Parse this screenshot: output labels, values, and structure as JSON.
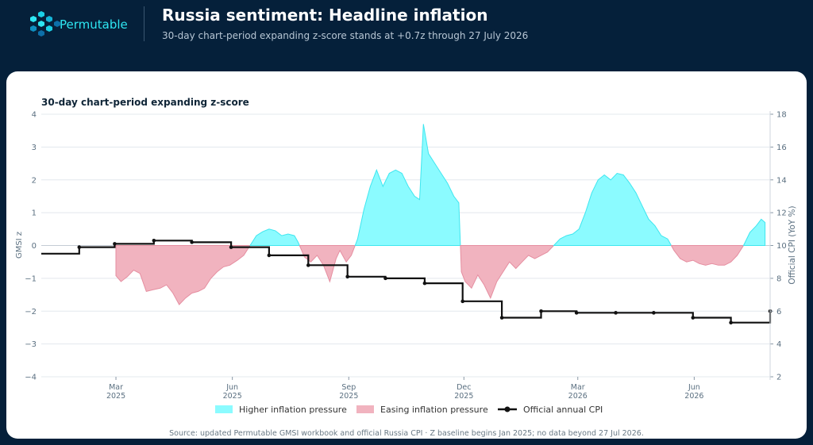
{
  "header": {
    "brand": "Permutable",
    "title": "Russia sentiment: Headline inflation",
    "subtitle": "30-day chart-period expanding z-score stands at +0.7z through 27 July 2026"
  },
  "footer": {
    "source": "Source: updated Permutable GMSI workbook and official Russia CPI · Z baseline begins Jan 2025; no data beyond 27 Jul 2026."
  },
  "colors": {
    "higher": "#8bfbff",
    "higher_line": "#3ee6ef",
    "easing": "#f1b3bf",
    "easing_line": "#e58ea0",
    "cpi": "#111111",
    "header_bg": "#05203a",
    "brand": "#2ee6f2"
  },
  "chart_data": {
    "type": "area",
    "title": "30-day chart-period expanding z-score",
    "ylabel": "GMSI z",
    "y2label": "Official CPI (YoY %)",
    "ylim": [
      -4,
      4
    ],
    "y2lim": [
      2,
      18
    ],
    "yticks": [
      -4,
      -3,
      -2,
      -1,
      0,
      1,
      2,
      3,
      4
    ],
    "yticks_labels": [
      "−4",
      "−3",
      "−2",
      "−1",
      "0",
      "1",
      "2",
      "3",
      "4"
    ],
    "y2ticks": [
      2,
      4,
      6,
      8,
      10,
      12,
      14,
      16,
      18
    ],
    "xlim": [
      "2025-01-01",
      "2026-07-31"
    ],
    "xticks": [
      {
        "date": "2025-03-01",
        "month": "Mar",
        "year": "2025"
      },
      {
        "date": "2025-06-01",
        "month": "Jun",
        "year": "2025"
      },
      {
        "date": "2025-09-01",
        "month": "Sep",
        "year": "2025"
      },
      {
        "date": "2025-12-01",
        "month": "Dec",
        "year": "2025"
      },
      {
        "date": "2026-03-01",
        "month": "Mar",
        "year": "2026"
      },
      {
        "date": "2026-06-01",
        "month": "Jun",
        "year": "2026"
      }
    ],
    "grid": true,
    "legend_position": "bottom",
    "legend": {
      "higher": "Higher inflation pressure",
      "easing": "Easing inflation pressure",
      "cpi": "Official annual CPI"
    },
    "zscore": [
      [
        "2025-03-01",
        -0.92
      ],
      [
        "2025-03-05",
        -1.1
      ],
      [
        "2025-03-10",
        -0.95
      ],
      [
        "2025-03-15",
        -0.75
      ],
      [
        "2025-03-20",
        -0.85
      ],
      [
        "2025-03-25",
        -1.4
      ],
      [
        "2025-03-30",
        -1.35
      ],
      [
        "2025-04-05",
        -1.3
      ],
      [
        "2025-04-10",
        -1.2
      ],
      [
        "2025-04-15",
        -1.45
      ],
      [
        "2025-04-20",
        -1.8
      ],
      [
        "2025-04-25",
        -1.6
      ],
      [
        "2025-04-30",
        -1.45
      ],
      [
        "2025-05-05",
        -1.4
      ],
      [
        "2025-05-10",
        -1.3
      ],
      [
        "2025-05-15",
        -1.0
      ],
      [
        "2025-05-20",
        -0.8
      ],
      [
        "2025-05-25",
        -0.65
      ],
      [
        "2025-05-30",
        -0.6
      ],
      [
        "2025-06-05",
        -0.45
      ],
      [
        "2025-06-10",
        -0.3
      ],
      [
        "2025-06-15",
        0.0
      ],
      [
        "2025-06-20",
        0.3
      ],
      [
        "2025-06-25",
        0.42
      ],
      [
        "2025-06-30",
        0.5
      ],
      [
        "2025-07-05",
        0.45
      ],
      [
        "2025-07-10",
        0.3
      ],
      [
        "2025-07-15",
        0.35
      ],
      [
        "2025-07-20",
        0.3
      ],
      [
        "2025-07-23",
        0.1
      ],
      [
        "2025-07-28",
        -0.35
      ],
      [
        "2025-08-02",
        -0.5
      ],
      [
        "2025-08-07",
        -0.3
      ],
      [
        "2025-08-12",
        -0.6
      ],
      [
        "2025-08-17",
        -1.1
      ],
      [
        "2025-08-22",
        -0.4
      ],
      [
        "2025-08-25",
        -0.15
      ],
      [
        "2025-08-30",
        -0.5
      ],
      [
        "2025-09-03",
        -0.3
      ],
      [
        "2025-09-08",
        0.2
      ],
      [
        "2025-09-13",
        1.1
      ],
      [
        "2025-09-18",
        1.8
      ],
      [
        "2025-09-23",
        2.3
      ],
      [
        "2025-09-28",
        1.8
      ],
      [
        "2025-10-03",
        2.2
      ],
      [
        "2025-10-08",
        2.3
      ],
      [
        "2025-10-13",
        2.2
      ],
      [
        "2025-10-18",
        1.8
      ],
      [
        "2025-10-23",
        1.5
      ],
      [
        "2025-10-27",
        1.4
      ],
      [
        "2025-10-30",
        3.7
      ],
      [
        "2025-11-03",
        2.8
      ],
      [
        "2025-11-08",
        2.5
      ],
      [
        "2025-11-13",
        2.2
      ],
      [
        "2025-11-18",
        1.9
      ],
      [
        "2025-11-23",
        1.5
      ],
      [
        "2025-11-27",
        1.3
      ],
      [
        "2025-11-29",
        -0.8
      ],
      [
        "2025-12-02",
        -1.1
      ],
      [
        "2025-12-07",
        -1.3
      ],
      [
        "2025-12-12",
        -0.9
      ],
      [
        "2025-12-17",
        -1.2
      ],
      [
        "2025-12-22",
        -1.6
      ],
      [
        "2025-12-27",
        -1.1
      ],
      [
        "2026-01-01",
        -0.8
      ],
      [
        "2026-01-06",
        -0.5
      ],
      [
        "2026-01-11",
        -0.7
      ],
      [
        "2026-01-16",
        -0.5
      ],
      [
        "2026-01-21",
        -0.3
      ],
      [
        "2026-01-26",
        -0.4
      ],
      [
        "2026-01-31",
        -0.3
      ],
      [
        "2026-02-05",
        -0.2
      ],
      [
        "2026-02-10",
        0.0
      ],
      [
        "2026-02-15",
        0.2
      ],
      [
        "2026-02-20",
        0.3
      ],
      [
        "2026-02-25",
        0.35
      ],
      [
        "2026-03-02",
        0.5
      ],
      [
        "2026-03-07",
        1.0
      ],
      [
        "2026-03-12",
        1.6
      ],
      [
        "2026-03-17",
        2.0
      ],
      [
        "2026-03-22",
        2.15
      ],
      [
        "2026-03-27",
        2.0
      ],
      [
        "2026-04-01",
        2.2
      ],
      [
        "2026-04-06",
        2.15
      ],
      [
        "2026-04-11",
        1.9
      ],
      [
        "2026-04-16",
        1.6
      ],
      [
        "2026-04-21",
        1.2
      ],
      [
        "2026-04-26",
        0.8
      ],
      [
        "2026-05-01",
        0.6
      ],
      [
        "2026-05-06",
        0.3
      ],
      [
        "2026-05-11",
        0.2
      ],
      [
        "2026-05-16",
        -0.15
      ],
      [
        "2026-05-21",
        -0.4
      ],
      [
        "2026-05-26",
        -0.5
      ],
      [
        "2026-05-31",
        -0.45
      ],
      [
        "2026-06-05",
        -0.55
      ],
      [
        "2026-06-10",
        -0.6
      ],
      [
        "2026-06-15",
        -0.55
      ],
      [
        "2026-06-20",
        -0.6
      ],
      [
        "2026-06-25",
        -0.6
      ],
      [
        "2026-06-30",
        -0.5
      ],
      [
        "2026-07-05",
        -0.3
      ],
      [
        "2026-07-10",
        0.0
      ],
      [
        "2026-07-15",
        0.4
      ],
      [
        "2026-07-20",
        0.6
      ],
      [
        "2026-07-24",
        0.8
      ],
      [
        "2026-07-27",
        0.7
      ]
    ],
    "cpi": [
      [
        "2025-01-01",
        9.5
      ],
      [
        "2025-01-31",
        9.9
      ],
      [
        "2025-02-28",
        10.1
      ],
      [
        "2025-03-31",
        10.3
      ],
      [
        "2025-04-30",
        10.2
      ],
      [
        "2025-05-31",
        9.9
      ],
      [
        "2025-06-30",
        9.4
      ],
      [
        "2025-07-31",
        8.8
      ],
      [
        "2025-08-31",
        8.1
      ],
      [
        "2025-09-30",
        8.0
      ],
      [
        "2025-10-31",
        7.7
      ],
      [
        "2025-11-30",
        6.6
      ],
      [
        "2025-12-31",
        5.6
      ],
      [
        "2026-01-31",
        6.0
      ],
      [
        "2026-02-28",
        5.9
      ],
      [
        "2026-03-31",
        5.9
      ],
      [
        "2026-04-30",
        5.9
      ],
      [
        "2026-05-31",
        5.6
      ],
      [
        "2026-06-30",
        5.3
      ],
      [
        "2026-07-31",
        6.0
      ]
    ]
  }
}
